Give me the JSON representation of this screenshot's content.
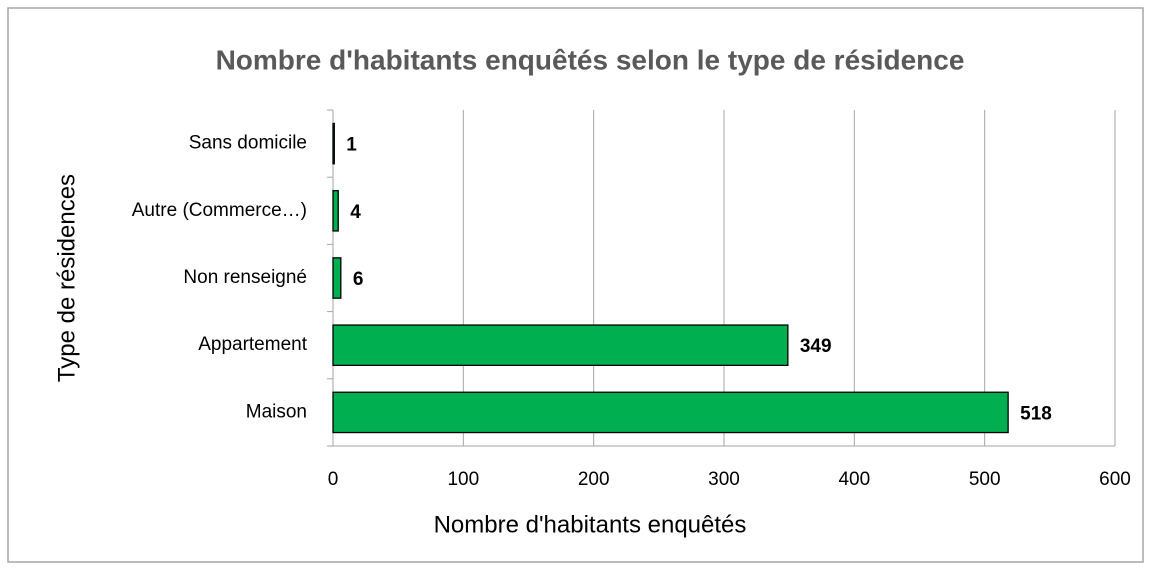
{
  "chart_data": {
    "type": "bar",
    "orientation": "horizontal",
    "title": "Nombre d'habitants enquêtés selon le type de résidence",
    "x_label": "Nombre d'habitants enquêtés",
    "y_label": "Type de résidences",
    "categories": [
      "Sans domicile",
      "Autre (Commerce…)",
      "Non renseigné",
      "Appartement",
      "Maison"
    ],
    "values": [
      1,
      4,
      6,
      349,
      518
    ],
    "color": "#00b050",
    "xlim": [
      0,
      600
    ],
    "xticks": [
      0,
      100,
      200,
      300,
      400,
      500,
      600
    ],
    "grid": true
  }
}
